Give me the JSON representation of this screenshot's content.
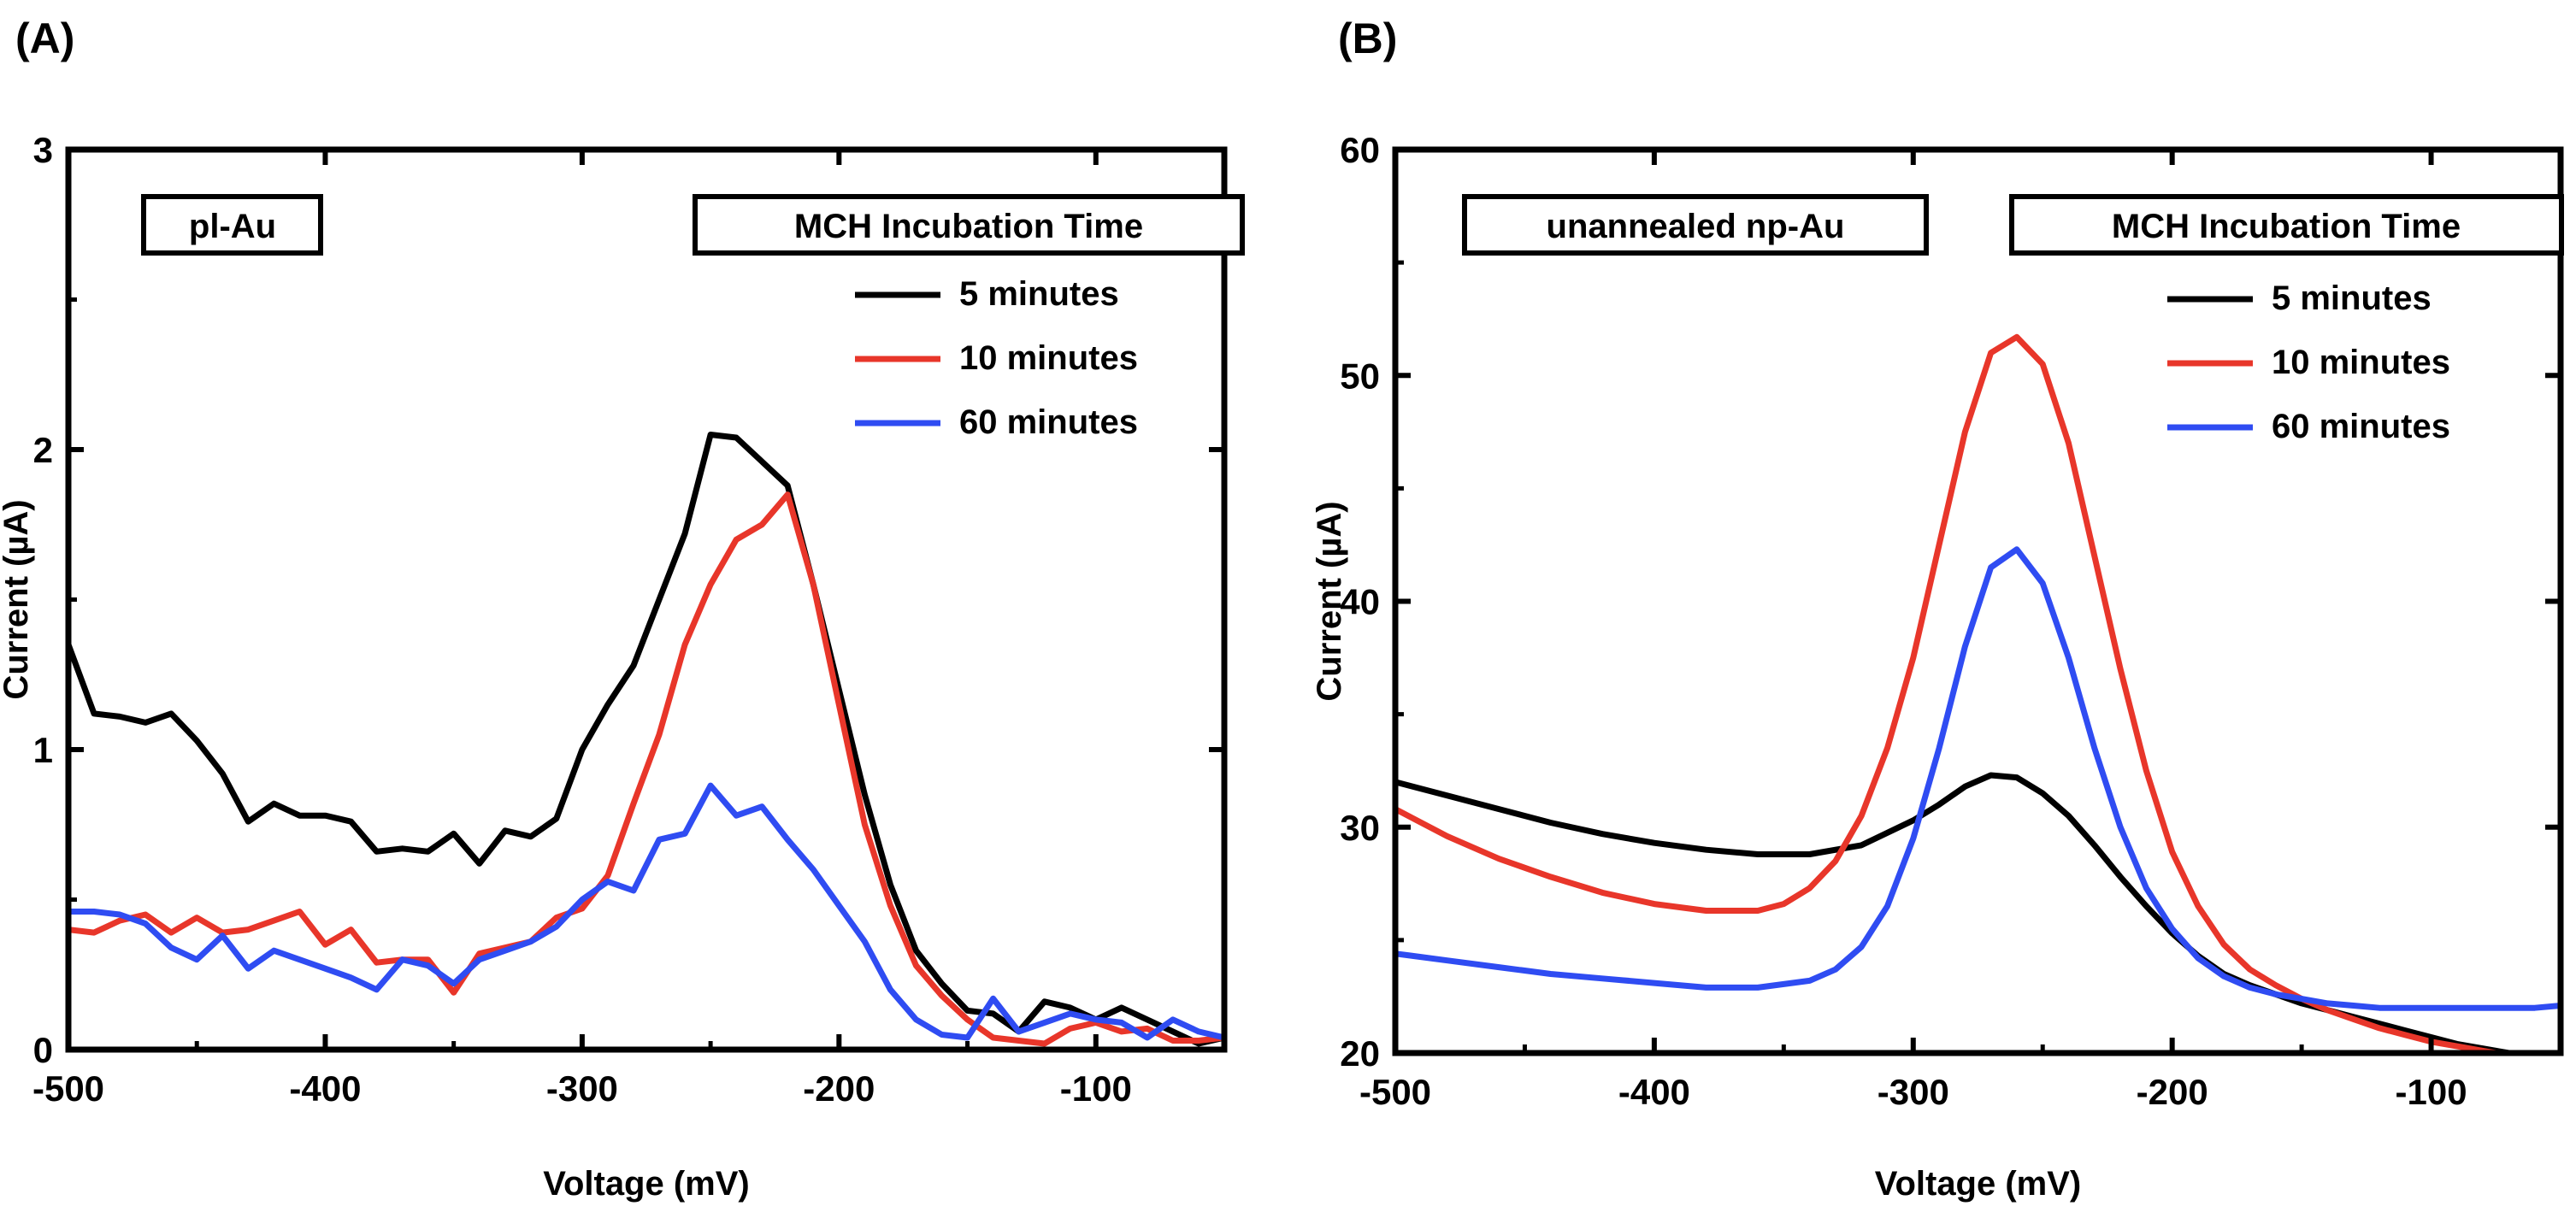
{
  "panels": [
    {
      "label": "(A)",
      "inset_label": "pl-Au",
      "legend_title": "MCH Incubation Time"
    },
    {
      "label": "(B)",
      "inset_label": "unannealed np-Au",
      "legend_title": "MCH Incubation Time"
    }
  ],
  "chart_data": [
    {
      "type": "line",
      "title": "pl-Au",
      "xlabel": "Voltage (mV)",
      "ylabel": "Current (µA)",
      "xlim": [
        -500,
        -50
      ],
      "ylim": [
        0,
        3
      ],
      "xticks": [
        -500,
        -400,
        -300,
        -200,
        -100
      ],
      "yticks": [
        0,
        1,
        2,
        3
      ],
      "legend_title": "MCH Incubation Time",
      "legend_position": "top-right",
      "series": [
        {
          "name": "5 minutes",
          "color": "#000000",
          "x": [
            -500,
            -490,
            -480,
            -470,
            -460,
            -450,
            -440,
            -430,
            -420,
            -410,
            -400,
            -390,
            -380,
            -370,
            -360,
            -350,
            -340,
            -330,
            -320,
            -310,
            -300,
            -290,
            -280,
            -270,
            -260,
            -250,
            -240,
            -230,
            -220,
            -210,
            -200,
            -190,
            -180,
            -170,
            -160,
            -150,
            -140,
            -130,
            -120,
            -110,
            -100,
            -90,
            -80,
            -70,
            -60,
            -50
          ],
          "values": [
            1.35,
            1.12,
            1.11,
            1.09,
            1.12,
            1.03,
            0.92,
            0.76,
            0.82,
            0.78,
            0.78,
            0.76,
            0.66,
            0.67,
            0.66,
            0.72,
            0.62,
            0.73,
            0.71,
            0.77,
            1.0,
            1.15,
            1.28,
            1.5,
            1.72,
            2.05,
            2.04,
            1.96,
            1.88,
            1.55,
            1.2,
            0.85,
            0.55,
            0.33,
            0.22,
            0.13,
            0.12,
            0.06,
            0.16,
            0.14,
            0.1,
            0.14,
            0.1,
            0.06,
            0.02,
            0.04
          ]
        },
        {
          "name": "10 minutes",
          "color": "#e8362a",
          "x": [
            -500,
            -490,
            -480,
            -470,
            -460,
            -450,
            -440,
            -430,
            -420,
            -410,
            -400,
            -390,
            -380,
            -370,
            -360,
            -350,
            -340,
            -330,
            -320,
            -310,
            -300,
            -290,
            -280,
            -270,
            -260,
            -250,
            -240,
            -230,
            -220,
            -210,
            -200,
            -190,
            -180,
            -170,
            -160,
            -150,
            -140,
            -130,
            -120,
            -110,
            -100,
            -90,
            -80,
            -70,
            -60,
            -50
          ],
          "values": [
            0.4,
            0.39,
            0.43,
            0.45,
            0.39,
            0.44,
            0.39,
            0.4,
            0.43,
            0.46,
            0.35,
            0.4,
            0.29,
            0.3,
            0.3,
            0.19,
            0.32,
            0.34,
            0.36,
            0.44,
            0.47,
            0.58,
            0.82,
            1.05,
            1.35,
            1.55,
            1.7,
            1.75,
            1.85,
            1.55,
            1.15,
            0.75,
            0.48,
            0.28,
            0.18,
            0.1,
            0.04,
            0.03,
            0.02,
            0.07,
            0.09,
            0.06,
            0.07,
            0.03,
            0.03,
            0.04
          ]
        },
        {
          "name": "60 minutes",
          "color": "#2f4cf2",
          "x": [
            -500,
            -490,
            -480,
            -470,
            -460,
            -450,
            -440,
            -430,
            -420,
            -410,
            -400,
            -390,
            -380,
            -370,
            -360,
            -350,
            -340,
            -330,
            -320,
            -310,
            -300,
            -290,
            -280,
            -270,
            -260,
            -250,
            -240,
            -230,
            -220,
            -210,
            -200,
            -190,
            -180,
            -170,
            -160,
            -150,
            -140,
            -130,
            -120,
            -110,
            -100,
            -90,
            -80,
            -70,
            -60,
            -50
          ],
          "values": [
            0.46,
            0.46,
            0.45,
            0.42,
            0.34,
            0.3,
            0.38,
            0.27,
            0.33,
            0.3,
            0.27,
            0.24,
            0.2,
            0.3,
            0.28,
            0.22,
            0.3,
            0.33,
            0.36,
            0.41,
            0.5,
            0.56,
            0.53,
            0.7,
            0.72,
            0.88,
            0.78,
            0.81,
            0.7,
            0.6,
            0.48,
            0.36,
            0.2,
            0.1,
            0.05,
            0.04,
            0.17,
            0.06,
            0.09,
            0.12,
            0.1,
            0.09,
            0.04,
            0.1,
            0.06,
            0.04
          ]
        }
      ]
    },
    {
      "type": "line",
      "title": "unannealed np-Au",
      "xlabel": "Voltage (mV)",
      "ylabel": "Current (µA)",
      "xlim": [
        -500,
        -50
      ],
      "ylim": [
        20,
        60
      ],
      "xticks": [
        -500,
        -400,
        -300,
        -200,
        -100
      ],
      "yticks": [
        20,
        30,
        40,
        50,
        60
      ],
      "legend_title": "MCH Incubation Time",
      "legend_position": "top-right",
      "series": [
        {
          "name": "5 minutes",
          "color": "#000000",
          "x": [
            -500,
            -480,
            -460,
            -440,
            -420,
            -400,
            -380,
            -360,
            -340,
            -320,
            -300,
            -290,
            -280,
            -270,
            -260,
            -250,
            -240,
            -230,
            -220,
            -210,
            -200,
            -190,
            -180,
            -170,
            -160,
            -150,
            -140,
            -130,
            -120,
            -110,
            -100,
            -90,
            -80,
            -70
          ],
          "values": [
            32.0,
            31.4,
            30.8,
            30.2,
            29.7,
            29.3,
            29.0,
            28.8,
            28.8,
            29.2,
            30.3,
            31.0,
            31.8,
            32.3,
            32.2,
            31.5,
            30.5,
            29.2,
            27.8,
            26.5,
            25.3,
            24.3,
            23.5,
            23.0,
            22.6,
            22.2,
            21.9,
            21.6,
            21.3,
            21.0,
            20.7,
            20.4,
            20.2,
            20.0
          ]
        },
        {
          "name": "10 minutes",
          "color": "#e8362a",
          "x": [
            -500,
            -480,
            -460,
            -440,
            -420,
            -400,
            -380,
            -360,
            -350,
            -340,
            -330,
            -320,
            -310,
            -300,
            -290,
            -280,
            -270,
            -260,
            -250,
            -240,
            -230,
            -220,
            -210,
            -200,
            -190,
            -180,
            -170,
            -160,
            -150,
            -140,
            -130,
            -120,
            -110,
            -100,
            -90,
            -80,
            -70
          ],
          "values": [
            30.8,
            29.6,
            28.6,
            27.8,
            27.1,
            26.6,
            26.3,
            26.3,
            26.6,
            27.3,
            28.5,
            30.5,
            33.5,
            37.5,
            42.5,
            47.5,
            51.0,
            51.7,
            50.5,
            47.0,
            42.0,
            37.0,
            32.5,
            28.9,
            26.5,
            24.8,
            23.7,
            23.0,
            22.4,
            21.9,
            21.5,
            21.1,
            20.8,
            20.5,
            20.3,
            20.1,
            19.9
          ]
        },
        {
          "name": "60 minutes",
          "color": "#2f4cf2",
          "x": [
            -500,
            -480,
            -460,
            -440,
            -420,
            -400,
            -380,
            -360,
            -340,
            -330,
            -320,
            -310,
            -300,
            -290,
            -280,
            -270,
            -260,
            -250,
            -240,
            -230,
            -220,
            -210,
            -200,
            -190,
            -180,
            -170,
            -160,
            -150,
            -140,
            -130,
            -120,
            -110,
            -100,
            -90,
            -80,
            -70,
            -60,
            -50
          ],
          "values": [
            24.4,
            24.1,
            23.8,
            23.5,
            23.3,
            23.1,
            22.9,
            22.9,
            23.2,
            23.7,
            24.7,
            26.5,
            29.5,
            33.5,
            38.0,
            41.5,
            42.3,
            40.8,
            37.5,
            33.5,
            30.0,
            27.3,
            25.5,
            24.2,
            23.4,
            22.9,
            22.6,
            22.4,
            22.2,
            22.1,
            22.0,
            22.0,
            22.0,
            22.0,
            22.0,
            22.0,
            22.0,
            22.1
          ]
        }
      ]
    }
  ]
}
